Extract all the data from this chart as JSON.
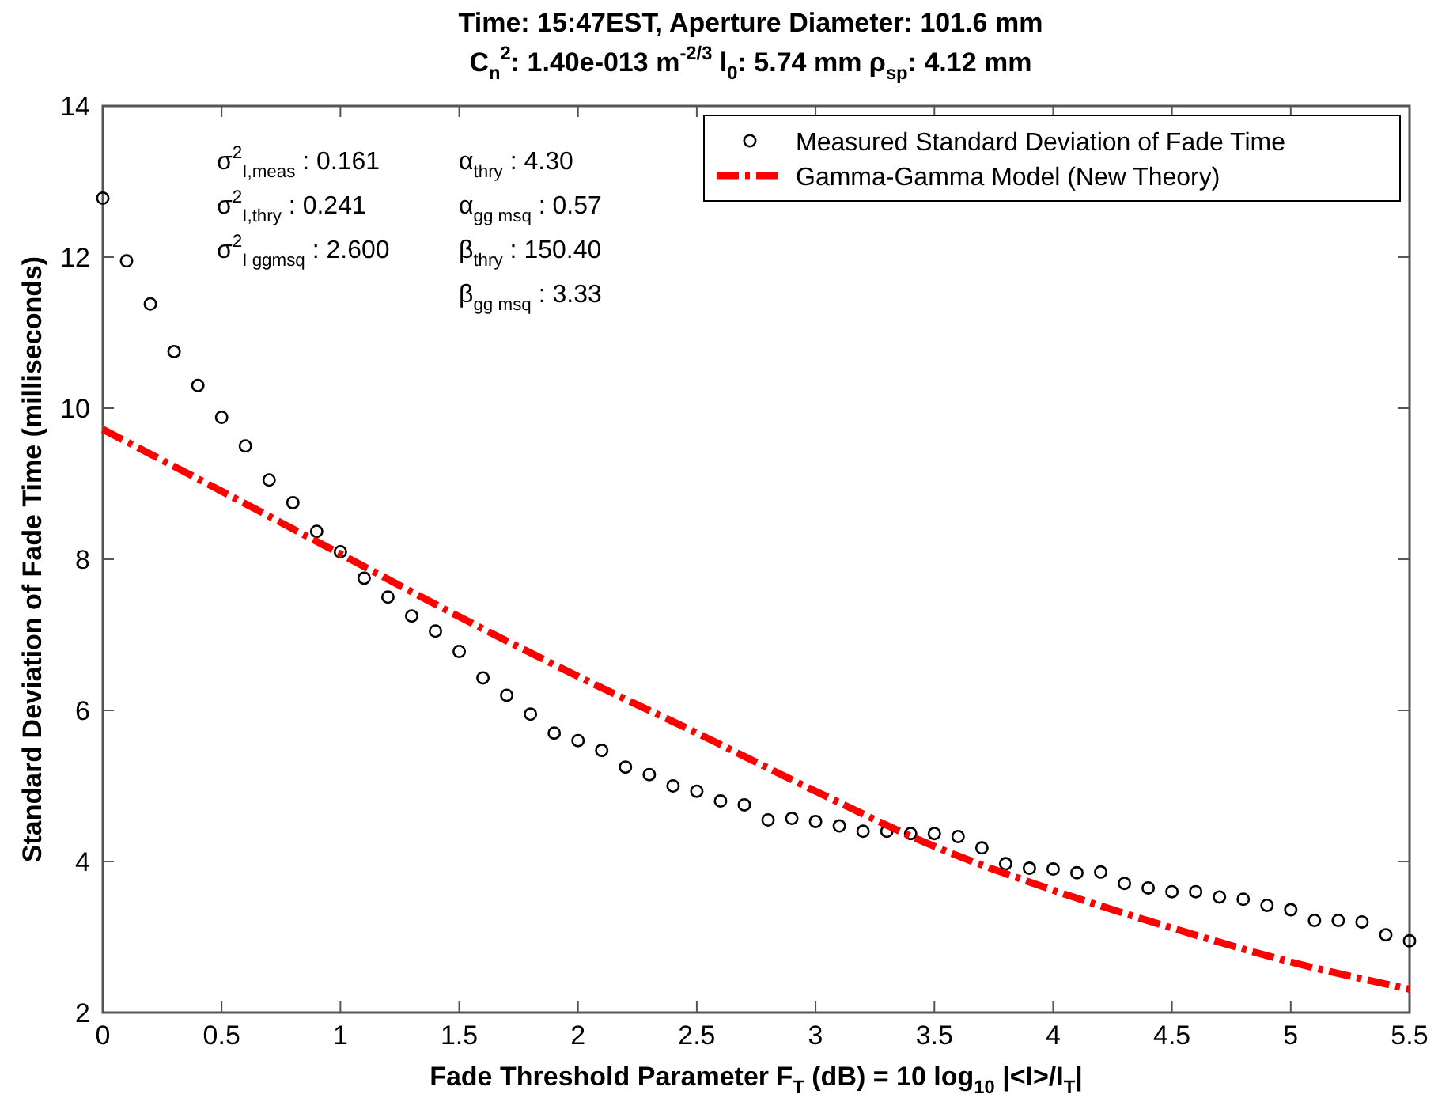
{
  "chart_data": {
    "type": "scatter",
    "title": "Time: 15:47EST,  Aperture Diameter: 101.6 mm",
    "subtitle": "C$_{n}$$^{2}$: 1.40e-013 m$^{-2/3}$  l$_{0}$: 5.74 mm  ρ$_{sp}$: 4.12 mm",
    "xlabel": "Fade Threshold Parameter F$_{T}$ (dB) = 10 log$_{10}$ |<I>/I$_{T}$|",
    "ylabel": "Standard Deviation of Fade Time (milliseconds)",
    "xlim": [
      0,
      5.5
    ],
    "xticks": [
      0,
      0.5,
      1,
      1.5,
      2,
      2.5,
      3,
      3.5,
      4,
      4.5,
      5,
      5.5
    ],
    "ylim": [
      2,
      14
    ],
    "yticks": [
      2,
      4,
      6,
      8,
      10,
      12,
      14
    ],
    "legend": "top right",
    "annotations": [
      "σ$^{2}$$_{I,meas}$ : 0.161",
      "σ$^{2}$$_{I,thry}$ : 0.241",
      "σ$^{2}$$_{I ggmsq}$ : 2.600",
      "α$_{thry}$ : 4.30",
      "α$_{gg msq}$ : 0.57",
      "β$_{thry}$ : 150.40",
      "β$_{gg msq}$ : 3.33"
    ],
    "series": [
      {
        "name": "Measured Standard Deviation of Fade Time",
        "marker": "circle",
        "color": "#000000",
        "x": [
          0,
          0.1,
          0.2,
          0.3,
          0.4,
          0.5,
          0.6,
          0.7,
          0.8,
          0.9,
          1,
          1.1,
          1.2,
          1.3,
          1.4,
          1.5,
          1.6,
          1.7,
          1.8,
          1.9,
          2,
          2.1,
          2.2,
          2.3,
          2.4,
          2.5,
          2.6,
          2.7,
          2.8,
          2.9,
          3,
          3.1,
          3.2,
          3.3,
          3.4,
          3.5,
          3.6,
          3.7,
          3.8,
          3.9,
          4,
          4.1,
          4.2,
          4.3,
          4.4,
          4.5,
          4.6,
          4.7,
          4.8,
          4.9,
          5,
          5.1,
          5.2,
          5.3,
          5.4,
          5.5
        ],
        "values": [
          12.78,
          11.95,
          11.38,
          10.75,
          10.3,
          9.88,
          9.5,
          9.05,
          8.75,
          8.37,
          8.1,
          7.75,
          7.5,
          7.25,
          7.05,
          6.78,
          6.43,
          6.2,
          5.95,
          5.7,
          5.6,
          5.47,
          5.25,
          5.15,
          5.0,
          4.93,
          4.8,
          4.75,
          4.55,
          4.57,
          4.53,
          4.47,
          4.4,
          4.4,
          4.37,
          4.37,
          4.33,
          4.18,
          3.97,
          3.91,
          3.9,
          3.85,
          3.86,
          3.71,
          3.65,
          3.6,
          3.6,
          3.53,
          3.5,
          3.42,
          3.36,
          3.22,
          3.22,
          3.2,
          3.03,
          2.95
        ]
      },
      {
        "name": "Gamma-Gamma Model (New Theory)",
        "type": "line",
        "marker": "none",
        "line_style": "dashed",
        "color": "#ff0000",
        "x": [
          0,
          0.5,
          1,
          1.5,
          2,
          2.5,
          3,
          3.5,
          4,
          4.5,
          5,
          5.5
        ],
        "values": [
          9.72,
          8.9,
          8.07,
          7.24,
          6.45,
          5.7,
          4.93,
          4.2,
          3.62,
          3.12,
          2.67,
          2.31
        ]
      }
    ]
  }
}
